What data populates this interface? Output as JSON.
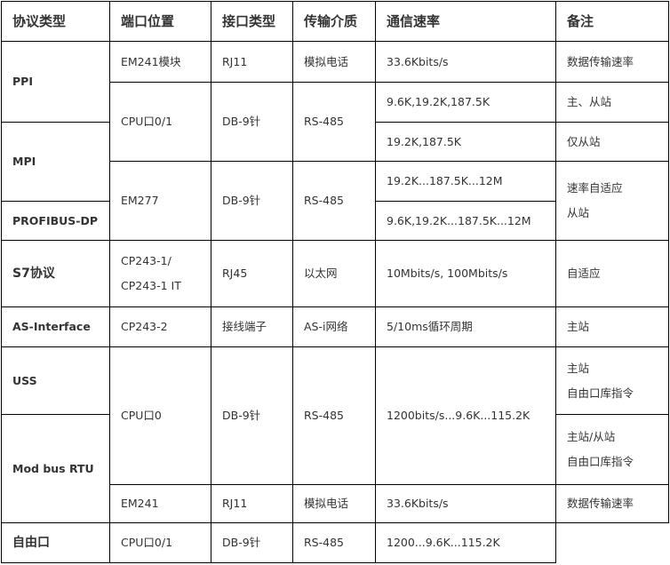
{
  "headers": [
    "协议类型",
    "端口位置",
    "接口类型",
    "传输介质",
    "通信速率",
    "备注"
  ],
  "protocols": {
    "ppi": "PPI",
    "mpi": "MPI",
    "profibus": "PROFIBUS-DP",
    "s7": "S7协议",
    "asi": "AS-Interface",
    "uss": "USS",
    "modbus": "Mod bus RTU",
    "freeport": "自由口"
  },
  "ports": {
    "em241_module": "EM241模块",
    "cpu01": "CPU口0/1",
    "em277": "EM277",
    "cp243_1a": "CP243-1/",
    "cp243_1b": "CP243-1 IT",
    "cp243_2": "CP243-2",
    "cpu0": "CPU口0",
    "em241": "EM241",
    "cpu01b": "CPU口0/1"
  },
  "interfaces": {
    "rj11": "RJ11",
    "db9": "DB-9针",
    "rj45": "RJ45",
    "terminal": "接线端子"
  },
  "media": {
    "phone": "模拟电话",
    "rs485": "RS-485",
    "ethernet": "以太网",
    "asi": "AS-i网络"
  },
  "rates": {
    "r1": "33.6Kbits/s",
    "r2": "9.6K,19.2K,187.5K",
    "r3": "19.2K,187.5K",
    "r4": "19.2K...187.5K...12M",
    "r5": "9.6K,19.2K...187.5K...12M",
    "r6": "10Mbits/s, 100Mbits/s",
    "r7": "5/10ms循环周期",
    "r8": "1200bits/s...9.6K...115.2K",
    "r9": "33.6Kbits/s",
    "r10": "1200...9.6K...115.2K"
  },
  "notes": {
    "n1": "数据传输速率",
    "n2": "主、从站",
    "n3": "仅从站",
    "n4a": "速率自适应",
    "n4b": "从站",
    "n5": "自适应",
    "n6": "主站",
    "n7a": "主站",
    "n7b": "自由口库指令",
    "n8a": "主站/从站",
    "n8b": "自由口库指令",
    "n9": "数据传输速率"
  }
}
